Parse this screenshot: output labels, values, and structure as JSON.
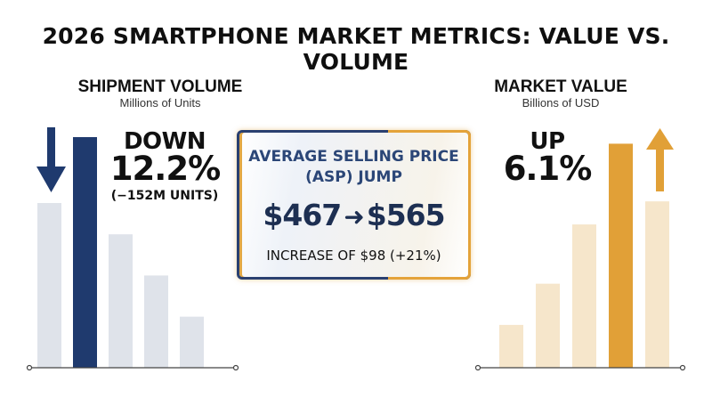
{
  "title": "2026 SMARTPHONE MARKET METRICS: VALUE VS. VOLUME",
  "colors": {
    "volume_accent": "#1f3a6e",
    "volume_muted": "#dfe3ea",
    "value_accent": "#e1a037",
    "value_muted": "#f6e6cb",
    "axis": "#444444"
  },
  "left": {
    "title": "SHIPMENT VOLUME",
    "subtitle": "Millions of Units",
    "direction": "DOWN",
    "change": "12.2%",
    "note": "(−152M UNITS)",
    "arrow_icon": "arrow-down-icon"
  },
  "right": {
    "title": "MARKET VALUE",
    "subtitle": "Billions of USD",
    "direction": "UP",
    "change": "6.1%",
    "arrow_icon": "arrow-up-icon"
  },
  "asp": {
    "heading_line1": "AVERAGE SELLING PRICE",
    "heading_line2": "(ASP) JUMP",
    "from": "$467",
    "to": "$565",
    "increase": "INCREASE OF $98 (+21%)"
  },
  "chart_data": [
    {
      "type": "bar",
      "title": "SHIPMENT VOLUME",
      "ylabel": "Millions of Units",
      "values": [
        100,
        140,
        81,
        56,
        31
      ],
      "highlighted_index": 1,
      "ylim": [
        0,
        140
      ],
      "grid": false
    },
    {
      "type": "bar",
      "title": "MARKET VALUE",
      "ylabel": "Billions of USD",
      "values": [
        26,
        51,
        87,
        136,
        101
      ],
      "highlighted_index": 3,
      "ylim": [
        0,
        140
      ],
      "grid": false
    }
  ]
}
